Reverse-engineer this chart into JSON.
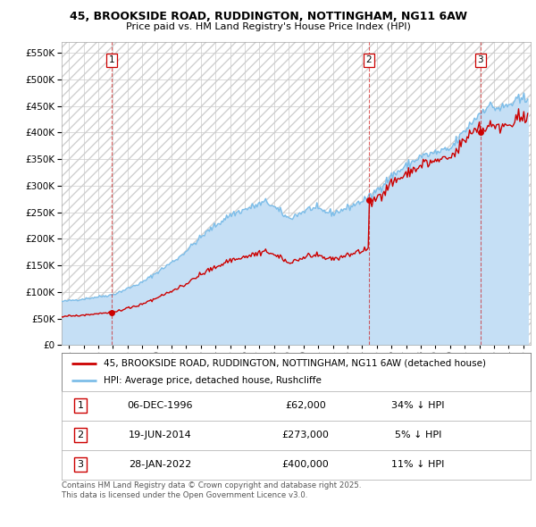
{
  "title_line1": "45, BROOKSIDE ROAD, RUDDINGTON, NOTTINGHAM, NG11 6AW",
  "title_line2": "Price paid vs. HM Land Registry's House Price Index (HPI)",
  "background_color": "#ffffff",
  "plot_bg_color": "#ffffff",
  "grid_color": "#cccccc",
  "hpi_color": "#7dbde8",
  "hpi_fill_color": "#c5dff5",
  "price_color": "#cc0000",
  "sale_marker_color": "#cc0000",
  "sales": [
    {
      "date_num": 1996.93,
      "price": 62000,
      "label": "1",
      "pct": "34% ↓ HPI",
      "date_str": "06-DEC-1996"
    },
    {
      "date_num": 2014.47,
      "price": 273000,
      "label": "2",
      "pct": "5% ↓ HPI",
      "date_str": "19-JUN-2014"
    },
    {
      "date_num": 2022.08,
      "price": 400000,
      "label": "3",
      "pct": "11% ↓ HPI",
      "date_str": "28-JAN-2022"
    }
  ],
  "legend_label_price": "45, BROOKSIDE ROAD, RUDDINGTON, NOTTINGHAM, NG11 6AW (detached house)",
  "legend_label_hpi": "HPI: Average price, detached house, Rushcliffe",
  "footer_line1": "Contains HM Land Registry data © Crown copyright and database right 2025.",
  "footer_line2": "This data is licensed under the Open Government Licence v3.0.",
  "xmin": 1993.5,
  "xmax": 2025.5,
  "ymin": 0,
  "ymax": 570000,
  "ytick_step": 50000
}
